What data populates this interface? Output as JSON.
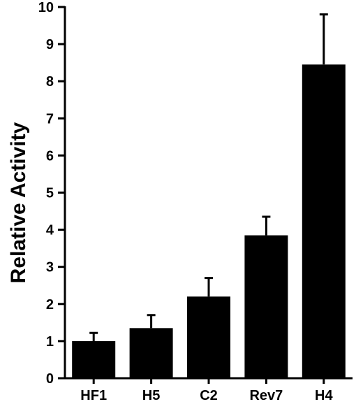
{
  "chart_data": {
    "type": "bar",
    "title": "",
    "xlabel": "",
    "ylabel": "Relative Activity",
    "ylim": [
      0,
      10
    ],
    "yticks": [
      "0",
      "1",
      "2",
      "3",
      "4",
      "5",
      "6",
      "7",
      "8",
      "9",
      "10"
    ],
    "categories": [
      "HF1",
      "H5",
      "C2",
      "Rev7",
      "H4"
    ],
    "values": [
      1.0,
      1.35,
      2.2,
      3.85,
      8.45
    ],
    "error_upper": [
      0.22,
      0.35,
      0.5,
      0.5,
      1.35
    ],
    "grid": false,
    "bar_color": "#000000"
  }
}
